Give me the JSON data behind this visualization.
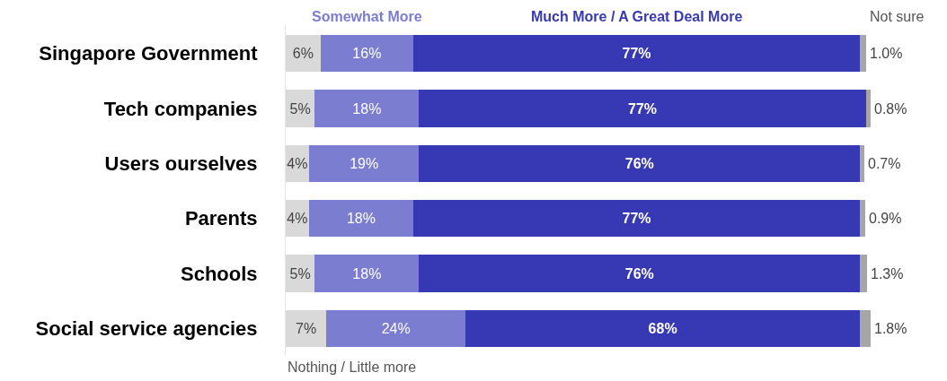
{
  "chart_data": {
    "type": "bar",
    "orientation": "horizontal",
    "stacked": true,
    "tick_labels": "y",
    "xlim": [
      0,
      101
    ],
    "categories": [
      "Singapore Government",
      "Tech companies",
      "Users ourselves",
      "Parents",
      "Schools",
      "Social service agencies"
    ],
    "series": [
      {
        "name": "Nothing / Little more",
        "color": "#d9d9d9",
        "values": [
          6,
          5,
          4,
          4,
          5,
          7
        ],
        "value_labels": [
          "6%",
          "5%",
          "4%",
          "4%",
          "5%",
          "7%"
        ]
      },
      {
        "name": "Somewhat More",
        "color": "#7b7dd0",
        "values": [
          16,
          18,
          19,
          18,
          18,
          24
        ],
        "value_labels": [
          "16%",
          "18%",
          "19%",
          "18%",
          "18%",
          "24%"
        ]
      },
      {
        "name": "Much More / A Great Deal More",
        "color": "#3638b4",
        "values": [
          77,
          77,
          76,
          77,
          76,
          68
        ],
        "value_labels": [
          "77%",
          "77%",
          "76%",
          "77%",
          "76%",
          "68%"
        ]
      },
      {
        "name": "Not sure",
        "color": "#a6a6a6",
        "values": [
          1.0,
          0.8,
          0.7,
          0.9,
          1.3,
          1.8
        ],
        "value_labels": [
          "1.0%",
          "0.8%",
          "0.7%",
          "0.9%",
          "1.3%",
          "1.8%"
        ]
      }
    ]
  }
}
